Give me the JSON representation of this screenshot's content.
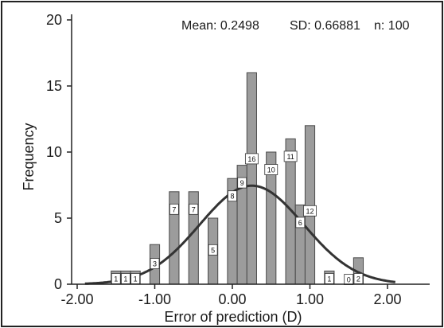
{
  "chart_data": {
    "type": "bar",
    "subtype": "histogram",
    "xlabel": "Error of prediction (D)",
    "ylabel": "Frequency",
    "xlim": [
      -2.2,
      2.2
    ],
    "ylim": [
      0,
      21
    ],
    "bin_width": 0.125,
    "xticks": [
      {
        "value": -2.0,
        "label": "-2.00"
      },
      {
        "value": -1.0,
        "label": "-1.00"
      },
      {
        "value": 0.0,
        "label": "0.00"
      },
      {
        "value": 1.0,
        "label": "1.00"
      },
      {
        "value": 2.0,
        "label": "2.00"
      }
    ],
    "yticks": [
      {
        "value": 0,
        "label": "0"
      },
      {
        "value": 5,
        "label": "5"
      },
      {
        "value": 10,
        "label": "10"
      },
      {
        "value": 15,
        "label": "15"
      },
      {
        "value": 20,
        "label": "20"
      }
    ],
    "bins": [
      {
        "center": -1.5,
        "count": 1,
        "label": "1"
      },
      {
        "center": -1.375,
        "count": 1,
        "label": "1"
      },
      {
        "center": -1.25,
        "count": 1,
        "label": "1"
      },
      {
        "center": -1.0,
        "count": 3,
        "label": "3"
      },
      {
        "center": -0.75,
        "count": 7,
        "label": "7"
      },
      {
        "center": -0.5,
        "count": 7,
        "label": "7"
      },
      {
        "center": -0.25,
        "count": 5,
        "label": "5"
      },
      {
        "center": 0.0,
        "count": 8,
        "label": "8"
      },
      {
        "center": 0.125,
        "count": 9,
        "label": "9"
      },
      {
        "center": 0.25,
        "count": 16,
        "label": "16"
      },
      {
        "center": 0.5,
        "count": 10,
        "label": "10"
      },
      {
        "center": 0.75,
        "count": 11,
        "label": "11"
      },
      {
        "center": 0.875,
        "count": 6,
        "label": "6"
      },
      {
        "center": 1.0,
        "count": 12,
        "label": "12"
      },
      {
        "center": 1.25,
        "count": 1,
        "label": "1"
      },
      {
        "center": 1.5,
        "count": 0,
        "label": "0"
      },
      {
        "center": 1.625,
        "count": 2,
        "label": "2"
      }
    ],
    "normal_curve": {
      "mean": 0.2498,
      "sd": 0.66881,
      "n": 100
    },
    "stats": {
      "mean_label": "Mean: 0.2498",
      "sd_label": "SD: 0.66881",
      "n_label": "n: 100"
    },
    "colors": {
      "bar_fill": "#9c9c9c",
      "bar_stroke": "#4a4a4a",
      "curve": "#333333",
      "label_box": "#ffffff"
    },
    "grid": false
  }
}
